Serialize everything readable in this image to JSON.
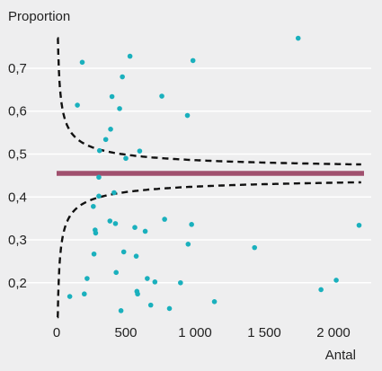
{
  "chart_data": {
    "type": "scatter",
    "title": "",
    "ylabel": "Proportion",
    "xlabel": "Antal",
    "xlim": [
      0,
      2230
    ],
    "ylim": [
      0.12,
      0.79
    ],
    "xticks": [
      {
        "value": 0,
        "label": "0"
      },
      {
        "value": 500,
        "label": "500"
      },
      {
        "value": 1000,
        "label": "1 000"
      },
      {
        "value": 1500,
        "label": "1 500"
      },
      {
        "value": 2000,
        "label": "2 000"
      }
    ],
    "yticks": [
      {
        "value": 0.2,
        "label": "0,2"
      },
      {
        "value": 0.3,
        "label": "0,3"
      },
      {
        "value": 0.4,
        "label": "0,4"
      },
      {
        "value": 0.5,
        "label": "0,5"
      },
      {
        "value": 0.6,
        "label": "0,6"
      },
      {
        "value": 0.7,
        "label": "0,7"
      }
    ],
    "grid": "horizontal",
    "mean_line": {
      "value": 0.455,
      "color": "#a0506e"
    },
    "control_limits": {
      "center": 0.455,
      "z": 1.96,
      "n_range": [
        5,
        2200
      ],
      "color": "#111111",
      "style": "dashed"
    },
    "point_color": "#1ab0bd",
    "points": [
      {
        "x": 95,
        "y": 0.168
      },
      {
        "x": 150,
        "y": 0.614
      },
      {
        "x": 185,
        "y": 0.714
      },
      {
        "x": 200,
        "y": 0.174
      },
      {
        "x": 220,
        "y": 0.21
      },
      {
        "x": 265,
        "y": 0.378
      },
      {
        "x": 270,
        "y": 0.267
      },
      {
        "x": 278,
        "y": 0.323
      },
      {
        "x": 282,
        "y": 0.316
      },
      {
        "x": 305,
        "y": 0.446
      },
      {
        "x": 305,
        "y": 0.402
      },
      {
        "x": 310,
        "y": 0.508
      },
      {
        "x": 355,
        "y": 0.534
      },
      {
        "x": 385,
        "y": 0.344
      },
      {
        "x": 390,
        "y": 0.558
      },
      {
        "x": 400,
        "y": 0.634
      },
      {
        "x": 415,
        "y": 0.41
      },
      {
        "x": 425,
        "y": 0.338
      },
      {
        "x": 430,
        "y": 0.224
      },
      {
        "x": 455,
        "y": 0.606
      },
      {
        "x": 465,
        "y": 0.135
      },
      {
        "x": 475,
        "y": 0.68
      },
      {
        "x": 485,
        "y": 0.272
      },
      {
        "x": 500,
        "y": 0.49
      },
      {
        "x": 530,
        "y": 0.728
      },
      {
        "x": 565,
        "y": 0.329
      },
      {
        "x": 575,
        "y": 0.262
      },
      {
        "x": 580,
        "y": 0.18
      },
      {
        "x": 585,
        "y": 0.174
      },
      {
        "x": 600,
        "y": 0.507
      },
      {
        "x": 640,
        "y": 0.32
      },
      {
        "x": 655,
        "y": 0.21
      },
      {
        "x": 680,
        "y": 0.148
      },
      {
        "x": 710,
        "y": 0.202
      },
      {
        "x": 760,
        "y": 0.635
      },
      {
        "x": 780,
        "y": 0.348
      },
      {
        "x": 815,
        "y": 0.14
      },
      {
        "x": 895,
        "y": 0.2
      },
      {
        "x": 945,
        "y": 0.59
      },
      {
        "x": 950,
        "y": 0.29
      },
      {
        "x": 975,
        "y": 0.336
      },
      {
        "x": 985,
        "y": 0.718
      },
      {
        "x": 1140,
        "y": 0.156
      },
      {
        "x": 1430,
        "y": 0.282
      },
      {
        "x": 1745,
        "y": 0.77
      },
      {
        "x": 1910,
        "y": 0.184
      },
      {
        "x": 2020,
        "y": 0.206
      },
      {
        "x": 2185,
        "y": 0.334
      }
    ]
  }
}
